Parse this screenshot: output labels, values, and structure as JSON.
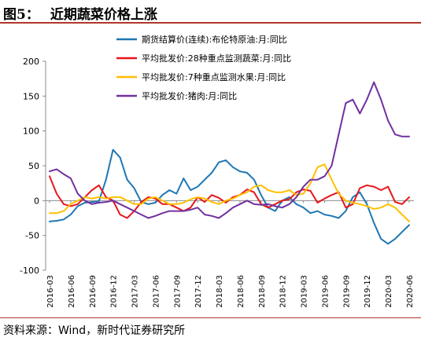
{
  "figure": {
    "label": "图5：",
    "title": "近期蔬菜价格上涨",
    "source": "资料来源：Wind，新时代证券研究所"
  },
  "chart_data": {
    "type": "line",
    "ylim": [
      -100,
      200
    ],
    "yticks": [
      -100,
      -50,
      0,
      50,
      100,
      150,
      200
    ],
    "grid": false,
    "legend_position": "top-right",
    "x": [
      "2016-03",
      "2016-04",
      "2016-05",
      "2016-06",
      "2016-07",
      "2016-08",
      "2016-09",
      "2016-10",
      "2016-11",
      "2016-12",
      "2017-01",
      "2017-02",
      "2017-03",
      "2017-04",
      "2017-05",
      "2017-06",
      "2017-07",
      "2017-08",
      "2017-09",
      "2017-10",
      "2017-11",
      "2017-12",
      "2018-01",
      "2018-02",
      "2018-03",
      "2018-04",
      "2018-05",
      "2018-06",
      "2018-07",
      "2018-08",
      "2018-09",
      "2018-10",
      "2018-11",
      "2018-12",
      "2019-01",
      "2019-02",
      "2019-03",
      "2019-04",
      "2019-05",
      "2019-06",
      "2019-07",
      "2019-08",
      "2019-09",
      "2019-10",
      "2019-11",
      "2019-12",
      "2020-01",
      "2020-02",
      "2020-03",
      "2020-04",
      "2020-05",
      "2020-06"
    ],
    "xtick_labels": [
      "2016-03",
      "2016-06",
      "2016-09",
      "2016-12",
      "2017-03",
      "2017-06",
      "2017-09",
      "2017-12",
      "2018-03",
      "2018-06",
      "2018-09",
      "2018-12",
      "2019-03",
      "2019-06",
      "2019-09",
      "2019-12",
      "2020-03",
      "2020-06"
    ],
    "series": [
      {
        "name": "期货结算价(连续):布伦特原油:月:同比",
        "color": "#1f77b4",
        "values": [
          -30,
          -29,
          -27,
          -20,
          -8,
          -3,
          -2,
          -1,
          30,
          73,
          62,
          30,
          18,
          -2,
          -5,
          -3,
          8,
          15,
          10,
          32,
          15,
          20,
          30,
          40,
          55,
          58,
          48,
          42,
          40,
          30,
          8,
          -10,
          -15,
          0,
          5,
          -5,
          -10,
          -18,
          -15,
          -20,
          -22,
          -25,
          -15,
          5,
          12,
          -5,
          -32,
          -55,
          -62,
          -55,
          -45,
          -35
        ]
      },
      {
        "name": "平均批发价:28种重点监测蔬菜:月:同比",
        "color": "#e8161b",
        "values": [
          35,
          10,
          -5,
          -8,
          -5,
          5,
          15,
          22,
          5,
          0,
          -20,
          -25,
          -15,
          -2,
          5,
          3,
          -5,
          -5,
          -10,
          -15,
          -10,
          5,
          -2,
          8,
          4,
          -3,
          5,
          8,
          16,
          12,
          -5,
          -10,
          -5,
          0,
          2,
          12,
          16,
          14,
          -3,
          3,
          8,
          12,
          -10,
          -5,
          18,
          22,
          20,
          15,
          20,
          -2,
          -5,
          5
        ]
      },
      {
        "name": "平均批发价:7种重点监测水果:月:同比",
        "color": "#ffc000",
        "values": [
          -18,
          -18,
          -15,
          -5,
          0,
          5,
          3,
          5,
          3,
          5,
          5,
          0,
          -5,
          -5,
          3,
          5,
          0,
          -5,
          -5,
          -3,
          2,
          5,
          3,
          -2,
          -5,
          0,
          3,
          8,
          12,
          20,
          22,
          15,
          12,
          12,
          15,
          8,
          10,
          25,
          48,
          52,
          30,
          10,
          0,
          -3,
          -5,
          -8,
          -12,
          -10,
          -5,
          -10,
          -20,
          -30
        ]
      },
      {
        "name": "平均批发价:猪肉:月:同比",
        "color": "#7030a0",
        "values": [
          42,
          45,
          38,
          32,
          10,
          0,
          -5,
          -3,
          -2,
          0,
          -5,
          -10,
          -15,
          -20,
          -25,
          -22,
          -18,
          -15,
          -15,
          -15,
          -13,
          -10,
          -20,
          -22,
          -25,
          -18,
          -10,
          -5,
          0,
          -5,
          -6,
          -5,
          -8,
          -10,
          -5,
          5,
          20,
          30,
          30,
          35,
          50,
          95,
          140,
          145,
          125,
          145,
          170,
          145,
          115,
          95,
          92,
          92
        ]
      }
    ]
  }
}
